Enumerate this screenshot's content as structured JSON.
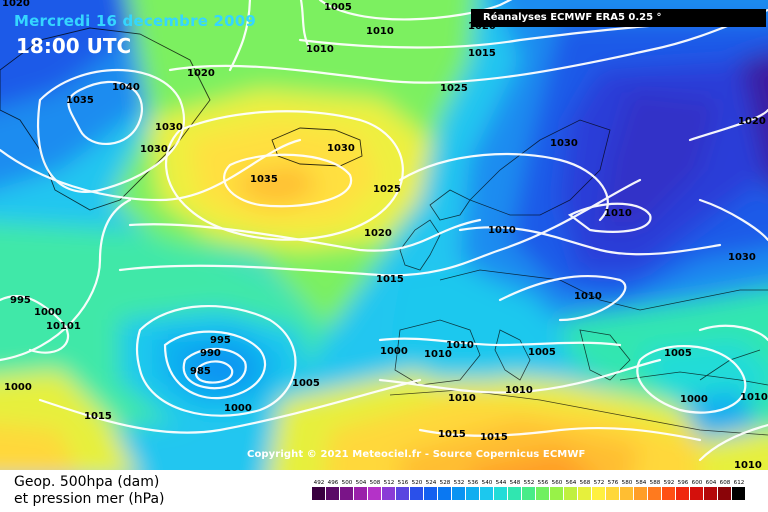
{
  "header": {
    "date": "Mercredi 16 decembre 2009",
    "time": "18:00 UTC",
    "source_box": "Réanalyses ECMWF ERA5 0.25 °"
  },
  "footer": {
    "copyright": "Copyright © 2021 Meteociel.fr - Source Copernicus ECMWF",
    "legend_line1": "Geop. 500hpa (dam)",
    "legend_line2": "et pression mer (hPa)"
  },
  "colorbar": {
    "ticks": [
      "492",
      "496",
      "500",
      "504",
      "508",
      "512",
      "516",
      "520",
      "524",
      "528",
      "532",
      "536",
      "540",
      "544",
      "548",
      "552",
      "556",
      "560",
      "564",
      "568",
      "572",
      "576",
      "580",
      "584",
      "588",
      "592",
      "596",
      "600",
      "604",
      "608",
      "612"
    ],
    "colors": [
      "#3a0040",
      "#5a0a66",
      "#7a1488",
      "#9a20aa",
      "#b432c8",
      "#8a3cd6",
      "#5a46e0",
      "#2a50ea",
      "#1460f0",
      "#0a78f2",
      "#0a94f2",
      "#10aef0",
      "#1cc8ee",
      "#22dcd8",
      "#30e6b0",
      "#48ec88",
      "#70f060",
      "#98f248",
      "#c0f040",
      "#e6f03c",
      "#fff040",
      "#ffd83a",
      "#ffbe32",
      "#ff9e28",
      "#ff7a1e",
      "#ff5014",
      "#f0280e",
      "#d4100c",
      "#b4080a",
      "#8a0408",
      "#000000"
    ]
  },
  "isobars": [
    {
      "text": "1020",
      "group": "upper-left"
    },
    {
      "text": "1005",
      "group": "top"
    },
    {
      "text": "1010",
      "group": "top"
    },
    {
      "text": "1010",
      "group": "top"
    },
    {
      "text": "1020",
      "group": "top"
    },
    {
      "text": "1015",
      "group": "top"
    },
    {
      "text": "1020",
      "group": "greenland"
    },
    {
      "text": "1040",
      "group": "greenland"
    },
    {
      "text": "1035",
      "group": "greenland"
    },
    {
      "text": "1030",
      "group": "greenland"
    },
    {
      "text": "1030",
      "group": "greenland"
    },
    {
      "text": "1025",
      "group": "atlantic"
    },
    {
      "text": "1030",
      "group": "iceland"
    },
    {
      "text": "1035",
      "group": "iceland"
    },
    {
      "text": "1025",
      "group": "atlantic"
    },
    {
      "text": "1020",
      "group": "atlantic"
    },
    {
      "text": "1015",
      "group": "atlantic"
    },
    {
      "text": "1030",
      "group": "scandinavia"
    },
    {
      "text": "1020",
      "group": "east"
    },
    {
      "text": "1010",
      "group": "baltic"
    },
    {
      "text": "1010",
      "group": "europe"
    },
    {
      "text": "1010",
      "group": "europe"
    },
    {
      "text": "1030",
      "group": "east"
    },
    {
      "text": "995",
      "group": "west"
    },
    {
      "text": "1000",
      "group": "west"
    },
    {
      "text": "10101",
      "group": "west"
    },
    {
      "text": "995",
      "group": "low"
    },
    {
      "text": "990",
      "group": "low"
    },
    {
      "text": "985",
      "group": "low"
    },
    {
      "text": "1000",
      "group": "low"
    },
    {
      "text": "1000",
      "group": "west"
    },
    {
      "text": "1015",
      "group": "south"
    },
    {
      "text": "1005",
      "group": "south"
    },
    {
      "text": "1000",
      "group": "iberia"
    },
    {
      "text": "1010",
      "group": "iberia"
    },
    {
      "text": "1010",
      "group": "med"
    },
    {
      "text": "1005",
      "group": "med"
    },
    {
      "text": "1010",
      "group": "med"
    },
    {
      "text": "1010",
      "group": "africa"
    },
    {
      "text": "1015",
      "group": "africa"
    },
    {
      "text": "1015",
      "group": "africa"
    },
    {
      "text": "1005",
      "group": "balkans"
    },
    {
      "text": "1000",
      "group": "balkans"
    },
    {
      "text": "1010",
      "group": "east"
    },
    {
      "text": "1010",
      "group": "east"
    }
  ]
}
